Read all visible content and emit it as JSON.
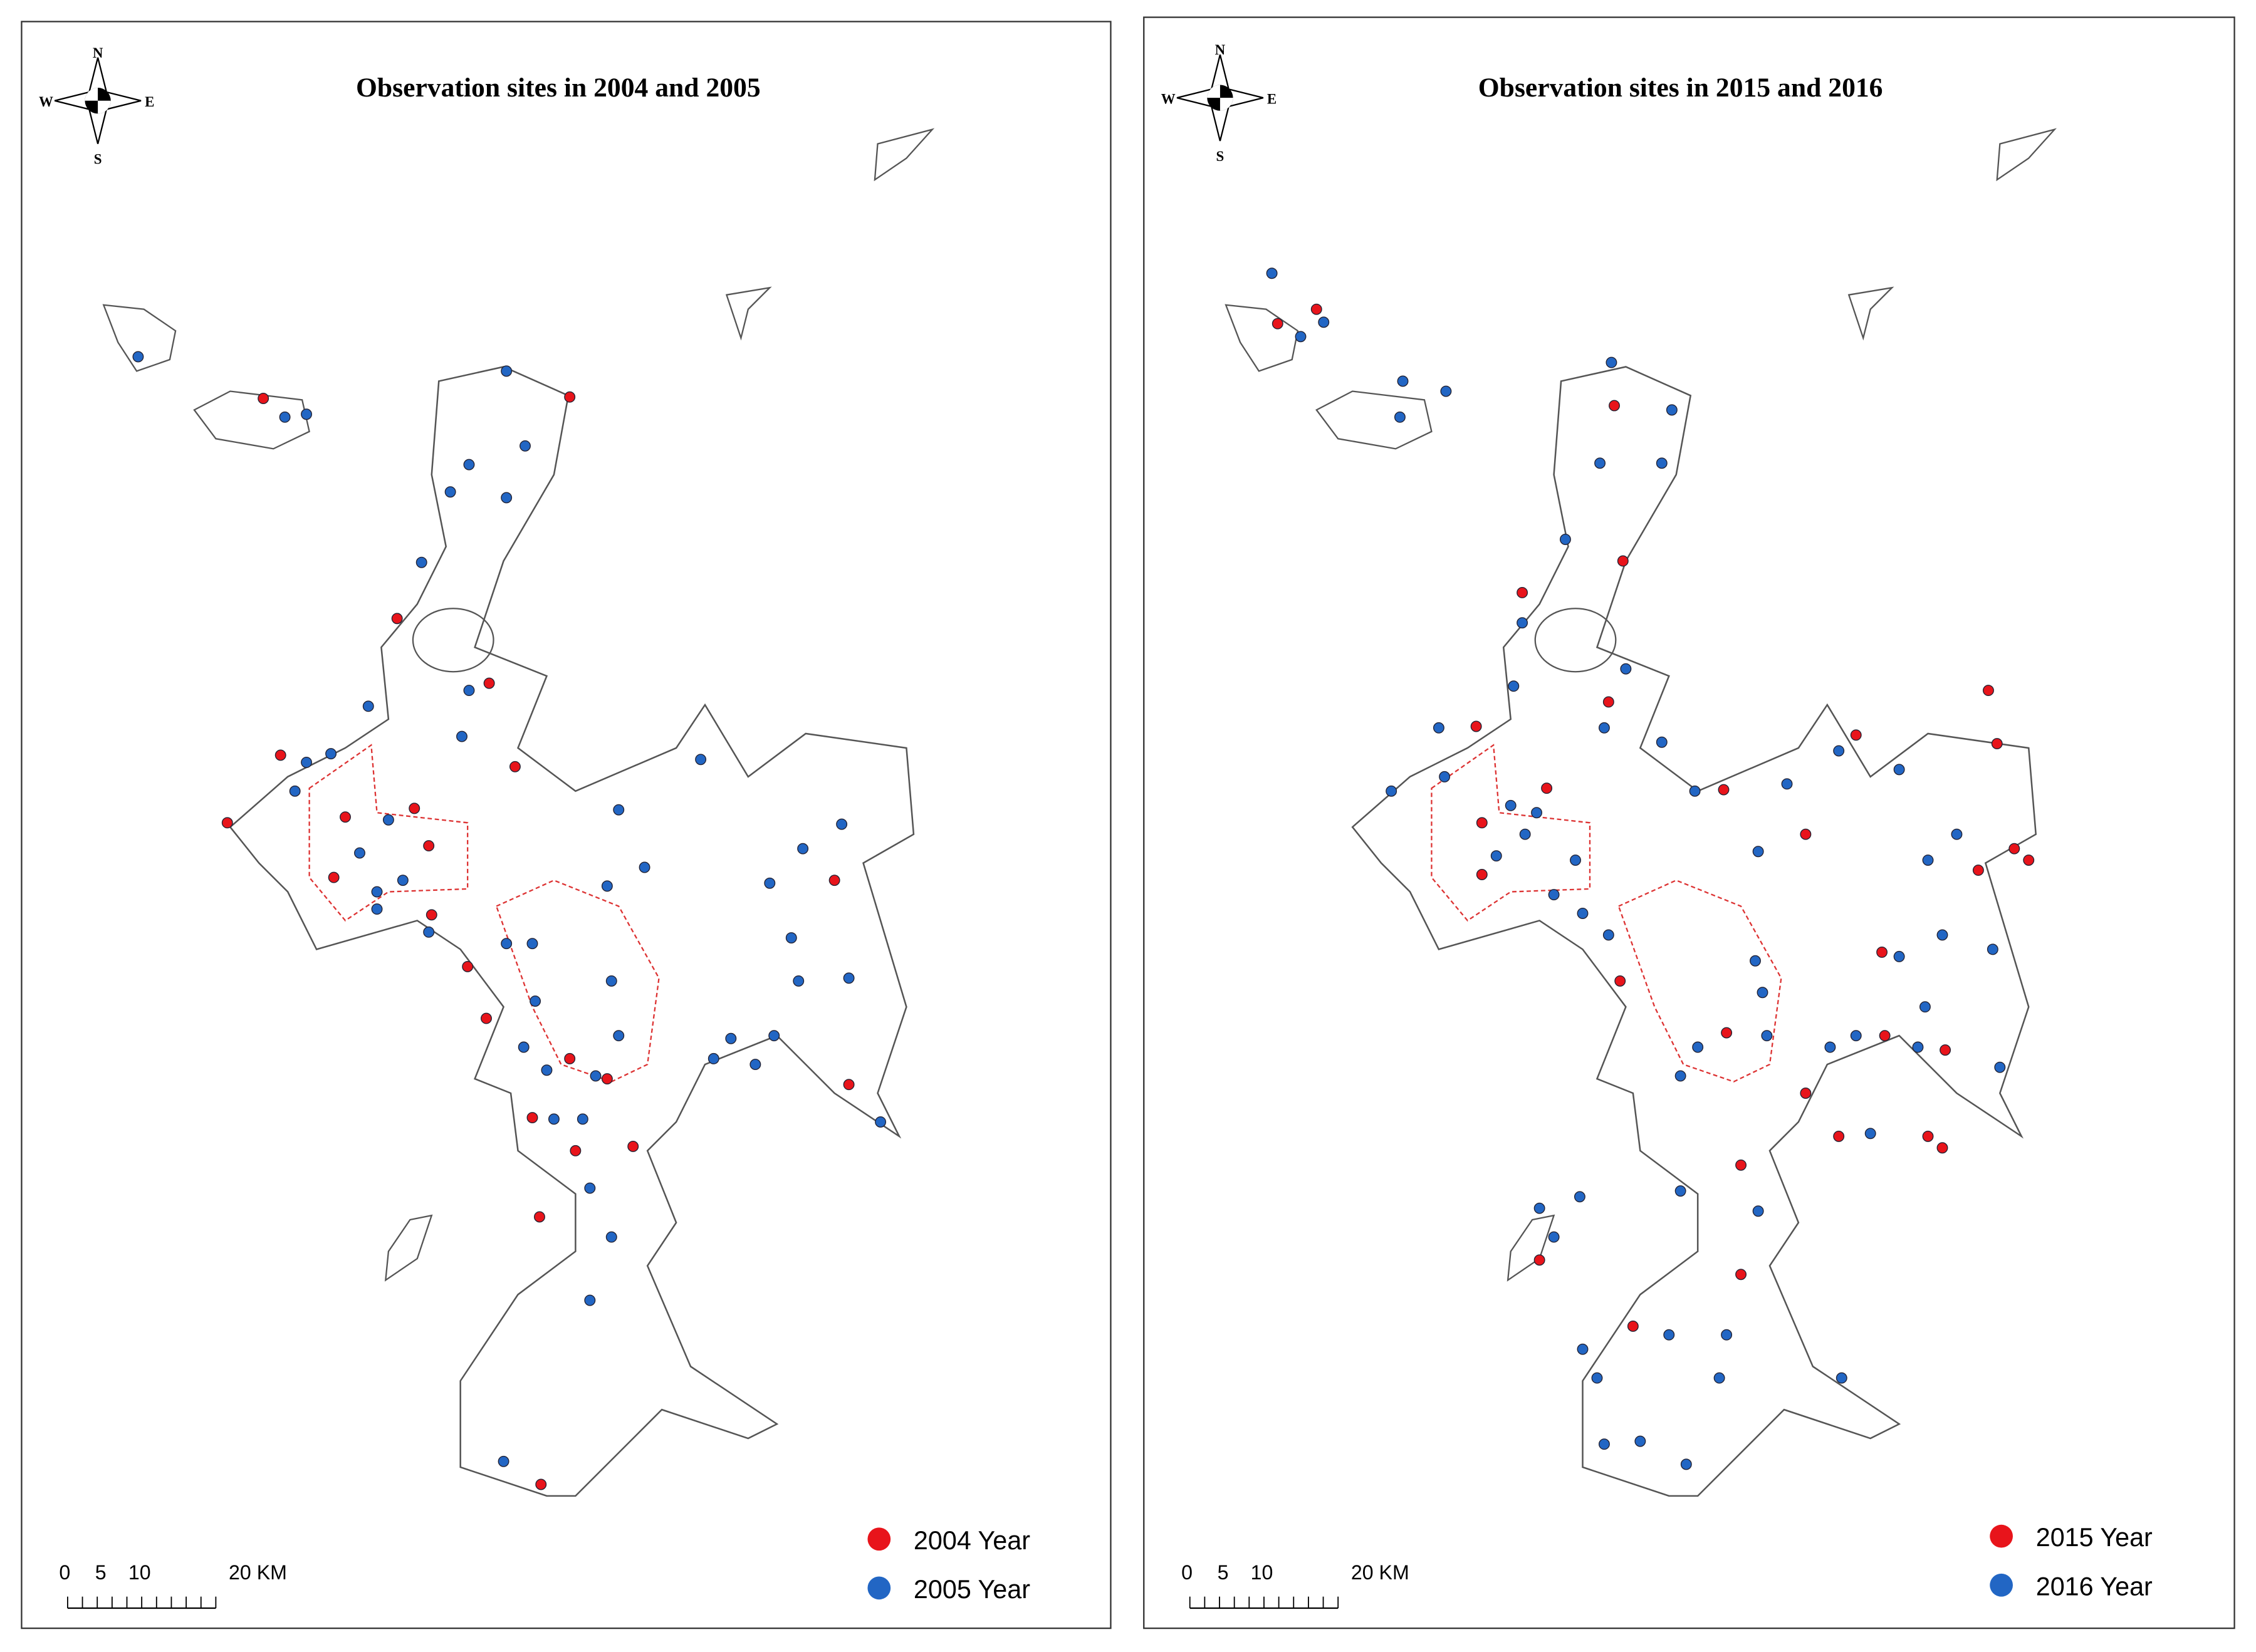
{
  "panels": [
    {
      "title": "Observation sites in 2004 and 2005",
      "compass": {
        "n": "N",
        "s": "S",
        "w": "W",
        "e": "E"
      },
      "scale_labels": [
        "0",
        "5",
        "10",
        "20 KM"
      ],
      "legend": [
        {
          "label": "2004 Year",
          "color": "#e8141b"
        },
        {
          "label": "2005 Year",
          "color": "#2266c4"
        }
      ]
    },
    {
      "title": "Observation sites in 2015 and 2016",
      "compass": {
        "n": "N",
        "s": "S",
        "w": "W",
        "e": "E"
      },
      "scale_labels": [
        "0",
        "5",
        "10",
        "20 KM"
      ],
      "legend": [
        {
          "label": "2015 Year",
          "color": "#e8141b"
        },
        {
          "label": "2016 Year",
          "color": "#2266c4"
        }
      ]
    }
  ]
}
